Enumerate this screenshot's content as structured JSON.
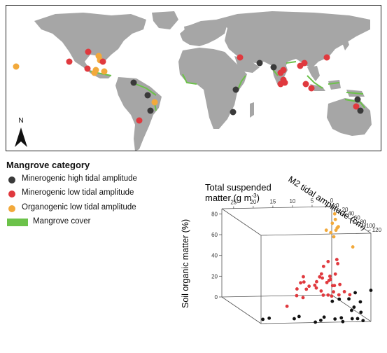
{
  "legend": {
    "title": "Mangrove category",
    "items": [
      {
        "label": "Minerogenic high tidal amplitude",
        "color": "#3a3a3a"
      },
      {
        "label": "Minerogenic low tidal amplitude",
        "color": "#e0393e"
      },
      {
        "label": "Organogenic low tidal amplitude",
        "color": "#f2a93b"
      },
      {
        "label": "Mangrove cover",
        "color": "#6cc24a"
      }
    ]
  },
  "map": {
    "north_label": "N",
    "land_color": "#a6a6a6",
    "mangrove_color": "#6cc24a"
  },
  "chart_data": {
    "type": "scatter",
    "dimensions": 3,
    "xlabel": "Total suspended matter (g m⁻³)",
    "ylabel": "M2 tidal amplitude (cm)",
    "zlabel": "Soil organic matter (%)",
    "xlabel_main": "Total suspended",
    "xlabel_unit_prefix": "matter (g m",
    "xlabel_unit_exp": "-3",
    "xlabel_unit_suffix": ")",
    "ylabel_text": "M2 tidal amplitude (cm)",
    "zlabel_text": "Soil organic matter (%)",
    "x_ticks": [
      "25",
      "20",
      "15",
      "10",
      "5",
      "0"
    ],
    "y_ticks": [
      "0",
      "20",
      "40",
      "60",
      "80",
      "100",
      "120"
    ],
    "z_ticks": [
      "0",
      "20",
      "40",
      "60",
      "80"
    ],
    "xlim": [
      0,
      28
    ],
    "ylim": [
      0,
      130
    ],
    "zlim": [
      0,
      85
    ],
    "series": [
      {
        "name": "Minerogenic high tidal amplitude",
        "color": "#111111",
        "points": [
          [
            26,
            110,
            0
          ],
          [
            24,
            105,
            0
          ],
          [
            18,
            110,
            0
          ],
          [
            16,
            100,
            0
          ],
          [
            12,
            120,
            0
          ],
          [
            10,
            105,
            0
          ],
          [
            8,
            115,
            0
          ],
          [
            6,
            110,
            0
          ],
          [
            4,
            120,
            1
          ],
          [
            3,
            125,
            2
          ],
          [
            7,
            128,
            0
          ],
          [
            2,
            130,
            1
          ],
          [
            1,
            110,
            5
          ],
          [
            3,
            105,
            6
          ],
          [
            2,
            100,
            8
          ],
          [
            0,
            95,
            12
          ],
          [
            5,
            90,
            14
          ],
          [
            6,
            80,
            10
          ],
          [
            1,
            70,
            10
          ],
          [
            0,
            130,
            30
          ],
          [
            4,
            130,
            28
          ],
          [
            14,
            128,
            0
          ]
        ]
      },
      {
        "name": "Minerogenic low tidal amplitude",
        "color": "#e0393e",
        "points": [
          [
            2,
            10,
            14
          ],
          [
            3,
            8,
            18
          ],
          [
            4,
            12,
            20
          ],
          [
            5,
            15,
            16
          ],
          [
            2,
            20,
            22
          ],
          [
            1,
            25,
            25
          ],
          [
            3,
            30,
            20
          ],
          [
            4,
            18,
            24
          ],
          [
            6,
            22,
            14
          ],
          [
            7,
            16,
            12
          ],
          [
            1,
            40,
            18
          ],
          [
            2,
            35,
            16
          ],
          [
            5,
            30,
            10
          ],
          [
            8,
            20,
            10
          ],
          [
            9,
            14,
            15
          ],
          [
            3,
            45,
            12
          ],
          [
            2,
            50,
            10
          ],
          [
            1,
            55,
            14
          ],
          [
            0,
            60,
            12
          ],
          [
            4,
            40,
            8
          ],
          [
            6,
            50,
            10
          ],
          [
            3,
            12,
            30
          ],
          [
            2,
            14,
            35
          ],
          [
            0,
            20,
            34
          ],
          [
            10,
            35,
            5
          ],
          [
            12,
            40,
            8
          ],
          [
            7,
            40,
            15
          ],
          [
            8,
            10,
            20
          ],
          [
            1,
            30,
            40
          ],
          [
            16,
            60,
            2
          ],
          [
            5,
            65,
            12
          ],
          [
            3,
            35,
            22
          ],
          [
            9,
            25,
            18
          ],
          [
            4,
            55,
            20
          ],
          [
            11,
            28,
            12
          ]
        ]
      },
      {
        "name": "Organogenic low tidal amplitude",
        "color": "#f2a93b",
        "points": [
          [
            0,
            10,
            80
          ],
          [
            0,
            12,
            75
          ],
          [
            1,
            15,
            72
          ],
          [
            0,
            18,
            68
          ],
          [
            1,
            10,
            62
          ],
          [
            0,
            14,
            65
          ],
          [
            0,
            70,
            60
          ],
          [
            1,
            20,
            60
          ],
          [
            0,
            22,
            70
          ],
          [
            2,
            8,
            64
          ]
        ]
      }
    ],
    "grid": false,
    "legend": "separate"
  }
}
